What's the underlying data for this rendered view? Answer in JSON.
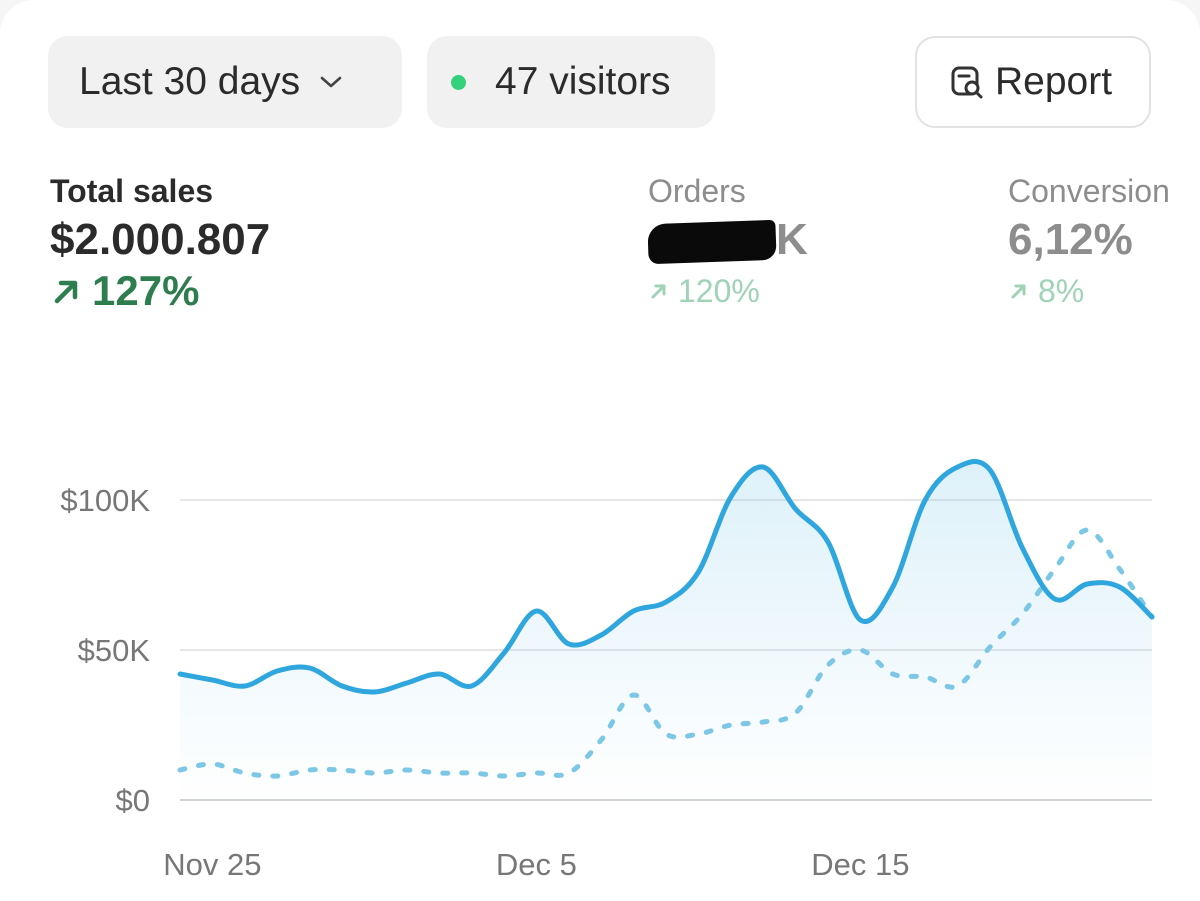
{
  "toolbar": {
    "range_label": "Last 30 days",
    "visitors_label": "47 visitors",
    "report_label": "Report"
  },
  "metrics": {
    "total_sales": {
      "label": "Total sales",
      "value": "$2.000.807",
      "change": "127%"
    },
    "orders": {
      "label": "Orders",
      "value_visible_suffix": "K",
      "change": "120%"
    },
    "conversion": {
      "label": "Conversion",
      "value": "6,12%",
      "change": "8%"
    }
  },
  "colors": {
    "primary_line": "#2fa6de",
    "comparison_line": "#7cc6e6",
    "positive_change": "#2e7d4f",
    "positive_change_muted": "#9fd3b5",
    "status_dot": "#34d17a"
  },
  "chart_data": {
    "type": "line",
    "x": [
      "Nov 24",
      "Nov 25",
      "Nov 26",
      "Nov 27",
      "Nov 28",
      "Nov 29",
      "Nov 30",
      "Dec 1",
      "Dec 2",
      "Dec 3",
      "Dec 4",
      "Dec 5",
      "Dec 6",
      "Dec 7",
      "Dec 8",
      "Dec 9",
      "Dec 10",
      "Dec 11",
      "Dec 12",
      "Dec 13",
      "Dec 14",
      "Dec 15",
      "Dec 16",
      "Dec 17",
      "Dec 18",
      "Dec 19",
      "Dec 20",
      "Dec 21",
      "Dec 22",
      "Dec 23",
      "Dec 24"
    ],
    "x_ticks": [
      "Nov 25",
      "Dec 5",
      "Dec 15"
    ],
    "y_ticks": [
      "$0",
      "$50K",
      "$100K"
    ],
    "ylim": [
      0,
      110000
    ],
    "grid": true,
    "series": [
      {
        "style": "solid",
        "values": [
          42000,
          40000,
          38000,
          43000,
          44000,
          38000,
          36000,
          39000,
          42000,
          38000,
          49000,
          63000,
          52000,
          55000,
          63000,
          66000,
          76000,
          101000,
          111000,
          97000,
          86000,
          60000,
          71000,
          100000,
          111000,
          110000,
          84000,
          67000,
          72000,
          71000,
          61000
        ]
      },
      {
        "style": "dashed",
        "values": [
          10000,
          12000,
          9000,
          8000,
          10000,
          10000,
          9000,
          10000,
          9000,
          9000,
          8000,
          9000,
          9000,
          20000,
          35000,
          22000,
          22000,
          25000,
          26000,
          29000,
          45000,
          50000,
          42000,
          41000,
          38000,
          51000,
          62000,
          77000,
          90000,
          77000,
          61000
        ]
      }
    ]
  }
}
